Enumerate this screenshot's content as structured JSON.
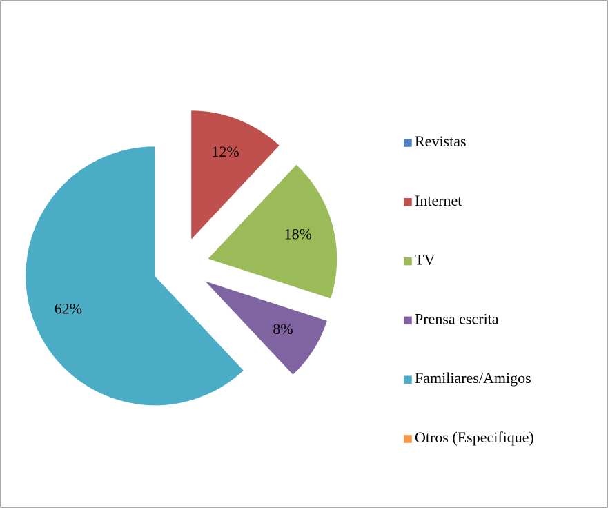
{
  "chart_data": {
    "type": "pie",
    "categories": [
      "Revistas",
      "Internet",
      "TV",
      "Prensa escrita",
      "Familiares/Amigos",
      "Otros (Especifique)"
    ],
    "values": [
      0,
      12,
      18,
      8,
      62,
      0
    ],
    "value_labels": [
      null,
      "12%",
      "18%",
      "8%",
      "62%",
      null
    ],
    "colors": [
      "#4f81bd",
      "#c0504d",
      "#9bbb59",
      "#8064a2",
      "#4bacc6",
      "#f79646"
    ],
    "legend": "right"
  }
}
